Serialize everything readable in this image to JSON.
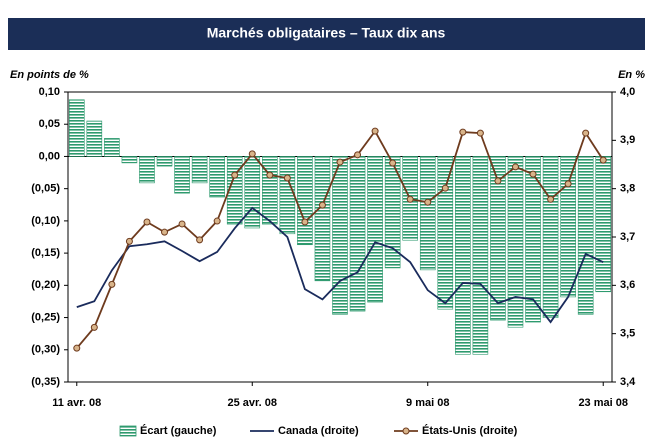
{
  "chart_data": {
    "type": "bar",
    "title": "Marchés obligataires – Taux dix ans",
    "y_label": "En points de %",
    "y2_label": "En %",
    "categories": [
      "11 avr. 08",
      null,
      null,
      null,
      null,
      null,
      null,
      null,
      null,
      null,
      "25 avr. 08",
      null,
      null,
      null,
      null,
      null,
      null,
      null,
      null,
      null,
      "9 mai 08",
      null,
      null,
      null,
      null,
      null,
      null,
      null,
      null,
      null,
      "23 mai 08"
    ],
    "series": [
      {
        "name": "Écart (gauche)",
        "type": "bar",
        "axis": "y",
        "color": "#2e9a6e",
        "values": [
          0.088,
          0.055,
          0.028,
          -0.01,
          -0.041,
          -0.015,
          -0.057,
          -0.041,
          -0.063,
          -0.105,
          -0.111,
          -0.105,
          -0.12,
          -0.137,
          -0.193,
          -0.245,
          -0.24,
          -0.226,
          -0.173,
          -0.13,
          -0.176,
          -0.237,
          -0.307,
          -0.307,
          -0.254,
          -0.265,
          -0.257,
          -0.25,
          -0.218,
          -0.245,
          -0.21
        ]
      },
      {
        "name": "Canada (droite)",
        "type": "line",
        "axis": "y2",
        "color": "#1a2b5c",
        "values": [
          3.555,
          3.567,
          3.631,
          3.681,
          3.685,
          3.691,
          3.671,
          3.65,
          3.669,
          3.718,
          3.76,
          3.733,
          3.7,
          3.592,
          3.571,
          3.609,
          3.627,
          3.689,
          3.677,
          3.648,
          3.59,
          3.563,
          3.605,
          3.603,
          3.563,
          3.576,
          3.571,
          3.524,
          3.576,
          3.665,
          3.648
        ]
      },
      {
        "name": "États-Unis (droite)",
        "type": "line-marker",
        "axis": "y2",
        "color": "#6e3b1e",
        "marker_color": "#d8b48a",
        "values": [
          3.47,
          3.513,
          3.602,
          3.691,
          3.731,
          3.71,
          3.727,
          3.694,
          3.733,
          3.828,
          3.872,
          3.828,
          3.822,
          3.731,
          3.766,
          3.855,
          3.87,
          3.919,
          3.853,
          3.778,
          3.772,
          3.801,
          3.917,
          3.915,
          3.816,
          3.845,
          3.83,
          3.778,
          3.81,
          3.915,
          3.859
        ]
      }
    ],
    "ylim": [
      -0.35,
      0.1
    ],
    "yticks": [
      {
        "value": 0.1,
        "label": "0,10"
      },
      {
        "value": 0.05,
        "label": "0,05"
      },
      {
        "value": 0,
        "label": "0,00"
      },
      {
        "value": -0.05,
        "label": "(0,05)"
      },
      {
        "value": -0.1,
        "label": "(0,10)"
      },
      {
        "value": -0.15,
        "label": "(0,15)"
      },
      {
        "value": -0.2,
        "label": "(0,20)"
      },
      {
        "value": -0.25,
        "label": "(0,25)"
      },
      {
        "value": -0.3,
        "label": "(0,30)"
      },
      {
        "value": -0.35,
        "label": "(0,35)"
      }
    ],
    "y2lim": [
      3.4,
      4
    ],
    "y2ticks": [
      {
        "value": 4,
        "label": "4,0"
      },
      {
        "value": 3.9,
        "label": "3,9"
      },
      {
        "value": 3.8,
        "label": "3,8"
      },
      {
        "value": 3.7,
        "label": "3,7"
      },
      {
        "value": 3.6,
        "label": "3,6"
      },
      {
        "value": 3.5,
        "label": "3,5"
      },
      {
        "value": 3.4,
        "label": "3,4"
      }
    ],
    "grid": false,
    "legend": "bottom"
  }
}
